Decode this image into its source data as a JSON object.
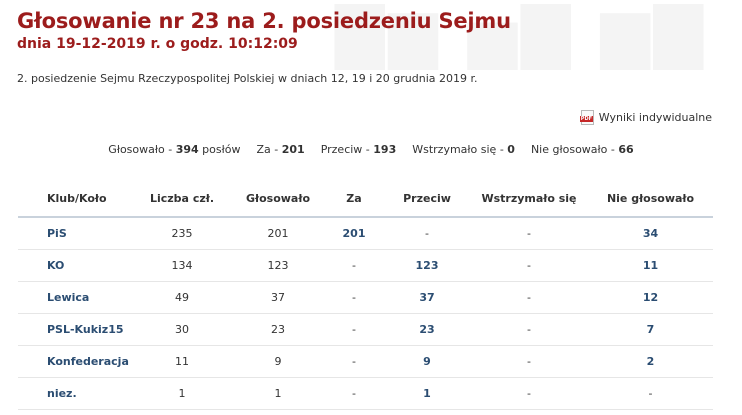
{
  "header": {
    "title": "Głosowanie nr 23 na 2. posiedzeniu Sejmu",
    "subtitle": "dnia 19-12-2019 r. o godz. 10:12:09",
    "description": "2. posiedzenie Sejmu Rzeczypospolitej Polskiej w dniach 12, 19 i 20 grudnia 2019 r."
  },
  "links": {
    "individual_results": "Wyniki indywidualne",
    "pdf_icon": "pdf-icon",
    "pdf_badge": "PDF"
  },
  "summary": {
    "voted_label": "Głosowało -",
    "voted_value": "394",
    "voted_suffix": "posłów",
    "for_label": "Za -",
    "for_value": "201",
    "against_label": "Przeciw -",
    "against_value": "193",
    "abstain_label": "Wstrzymało się -",
    "abstain_value": "0",
    "not_voted_label": "Nie głosowało -",
    "not_voted_value": "66"
  },
  "table": {
    "headers": [
      "Klub/Koło",
      "Liczba czł.",
      "Głosowało",
      "Za",
      "Przeciw",
      "Wstrzymało się",
      "Nie głosowało"
    ],
    "rows": [
      {
        "club": "PiS",
        "members": "235",
        "voted": "201",
        "for": "201",
        "against": "-",
        "abstain": "-",
        "not_voted": "34"
      },
      {
        "club": "KO",
        "members": "134",
        "voted": "123",
        "for": "-",
        "against": "123",
        "abstain": "-",
        "not_voted": "11"
      },
      {
        "club": "Lewica",
        "members": "49",
        "voted": "37",
        "for": "-",
        "against": "37",
        "abstain": "-",
        "not_voted": "12"
      },
      {
        "club": "PSL-Kukiz15",
        "members": "30",
        "voted": "23",
        "for": "-",
        "against": "23",
        "abstain": "-",
        "not_voted": "7"
      },
      {
        "club": "Konfederacja",
        "members": "11",
        "voted": "9",
        "for": "-",
        "against": "9",
        "abstain": "-",
        "not_voted": "2"
      },
      {
        "club": "niez.",
        "members": "1",
        "voted": "1",
        "for": "-",
        "against": "1",
        "abstain": "-",
        "not_voted": "-"
      }
    ]
  },
  "colors": {
    "title": "#9c1c1c",
    "link": "#2b4d72",
    "header_border": "#c9d2dc"
  }
}
